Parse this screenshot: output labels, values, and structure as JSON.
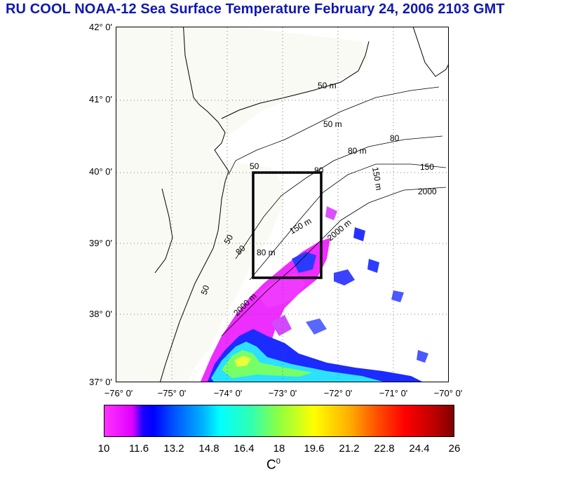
{
  "title": "RU COOL  NOAA-12 Sea Surface Temperature February 24, 2006 2103 GMT",
  "map": {
    "lat_labels": [
      "42° 0'",
      "41° 0'",
      "40° 0'",
      "39° 0'",
      "38° 0'",
      "37° 0'"
    ],
    "lon_labels": [
      "−76° 0'",
      "−75° 0'",
      "−74° 0'",
      "−73° 0'",
      "−72° 0'",
      "−71° 0'",
      "−70° 0'"
    ],
    "contours": {
      "c50a": "50 m",
      "c50b": "50 m",
      "c50c": "50",
      "c50d": "50",
      "c50e": "50",
      "c80a": "80 m",
      "c80b": "80",
      "c80c": "80",
      "c80d": "80 m",
      "c80e": "80",
      "c150a": "150",
      "c150b": "150 m",
      "c150c": "150 m",
      "c2000a": "2000",
      "c2000b": "2000 m",
      "c2000c": "2000 m"
    },
    "colors": {
      "land": "#fafaf4",
      "water_nodata": "#ffffff",
      "box": "#000000"
    }
  },
  "colorbar": {
    "ticks": [
      "10",
      "11.6",
      "13.2",
      "14.8",
      "16.4",
      "18",
      "19.6",
      "21.2",
      "22.8",
      "24.4",
      "26"
    ],
    "unit": "C",
    "unit_sup": "0",
    "min": 10,
    "max": 26
  }
}
